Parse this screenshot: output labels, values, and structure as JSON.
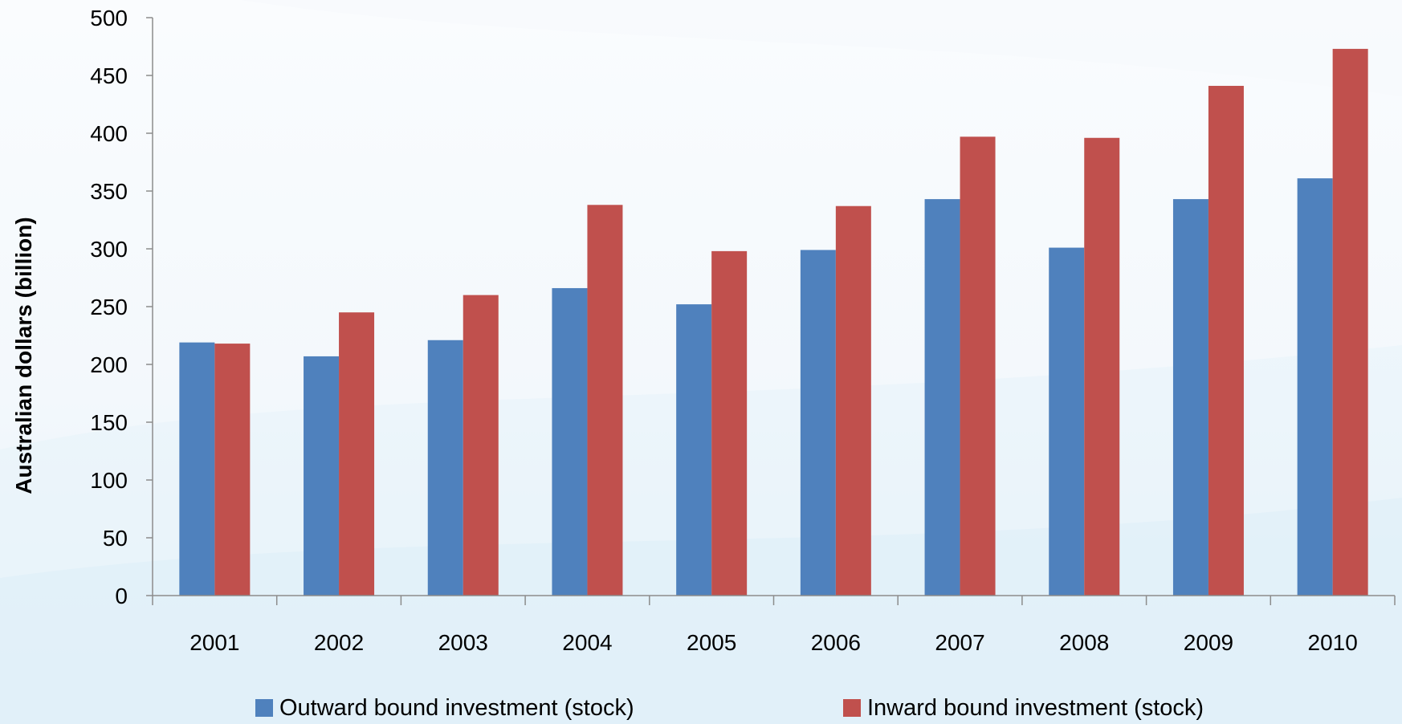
{
  "chart_data": {
    "type": "bar",
    "title": "",
    "xlabel": "",
    "ylabel": "Australian dollars (billion)",
    "ylim": [
      0,
      500
    ],
    "yticks": [
      0,
      50,
      100,
      150,
      200,
      250,
      300,
      350,
      400,
      450,
      500
    ],
    "categories": [
      "2001",
      "2002",
      "2003",
      "2004",
      "2005",
      "2006",
      "2007",
      "2008",
      "2009",
      "2010"
    ],
    "series": [
      {
        "name": "Outward bound investment (stock)",
        "color": "#4F81BD",
        "values": [
          219,
          207,
          221,
          266,
          252,
          299,
          343,
          301,
          343,
          361
        ]
      },
      {
        "name": "Inward bound investment (stock)",
        "color": "#C0504D",
        "values": [
          218,
          245,
          260,
          338,
          298,
          337,
          397,
          396,
          441,
          473
        ]
      }
    ],
    "legend_position": "bottom",
    "grid": false
  }
}
